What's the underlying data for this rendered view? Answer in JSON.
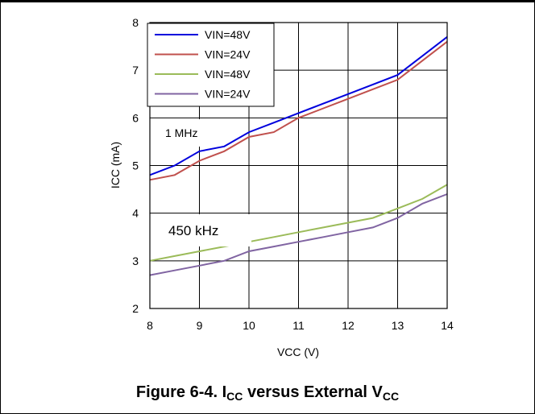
{
  "chart_data": {
    "type": "line",
    "xlabel": "VCC (V)",
    "ylabel": "ICC (mA)",
    "xlim": [
      8,
      14
    ],
    "ylim": [
      2,
      8
    ],
    "xticks": [
      "8",
      "9",
      "10",
      "11",
      "12",
      "13",
      "14"
    ],
    "yticks": [
      "2",
      "3",
      "4",
      "5",
      "6",
      "7",
      "8"
    ],
    "grid": true,
    "legend_position": "top-left",
    "annotations": [
      "1 MHz",
      "450 kHz"
    ],
    "series": [
      {
        "name": "VIN=48V",
        "color": "#0000dd",
        "x": [
          8,
          8.5,
          9,
          9.5,
          10,
          10.5,
          11,
          11.5,
          12,
          12.5,
          13,
          13.5,
          14
        ],
        "y": [
          4.8,
          5.0,
          5.3,
          5.4,
          5.7,
          5.9,
          6.1,
          6.3,
          6.5,
          6.7,
          6.9,
          7.3,
          7.7
        ]
      },
      {
        "name": "VIN=24V",
        "color": "#c0504d",
        "x": [
          8,
          8.5,
          9,
          9.5,
          10,
          10.5,
          11,
          11.5,
          12,
          12.5,
          13,
          13.5,
          14
        ],
        "y": [
          4.7,
          4.8,
          5.1,
          5.3,
          5.6,
          5.7,
          6.0,
          6.2,
          6.4,
          6.6,
          6.8,
          7.2,
          7.6
        ]
      },
      {
        "name": "VIN=48V",
        "color": "#9bbb59",
        "x": [
          8,
          8.5,
          9,
          9.5,
          10,
          10.5,
          11,
          11.5,
          12,
          12.5,
          13,
          13.5,
          14
        ],
        "y": [
          3.0,
          3.1,
          3.2,
          3.3,
          3.4,
          3.5,
          3.6,
          3.7,
          3.8,
          3.9,
          4.1,
          4.3,
          4.6
        ]
      },
      {
        "name": "VIN=24V",
        "color": "#8064a2",
        "x": [
          8,
          8.5,
          9,
          9.5,
          10,
          10.5,
          11,
          11.5,
          12,
          12.5,
          13,
          13.5,
          14
        ],
        "y": [
          2.7,
          2.8,
          2.9,
          3.0,
          3.2,
          3.3,
          3.4,
          3.5,
          3.6,
          3.7,
          3.9,
          4.2,
          4.4
        ]
      }
    ]
  },
  "caption": {
    "prefix": "Figure 6-4. I",
    "sub1": "CC",
    "middle": " versus External V",
    "sub2": "CC"
  }
}
